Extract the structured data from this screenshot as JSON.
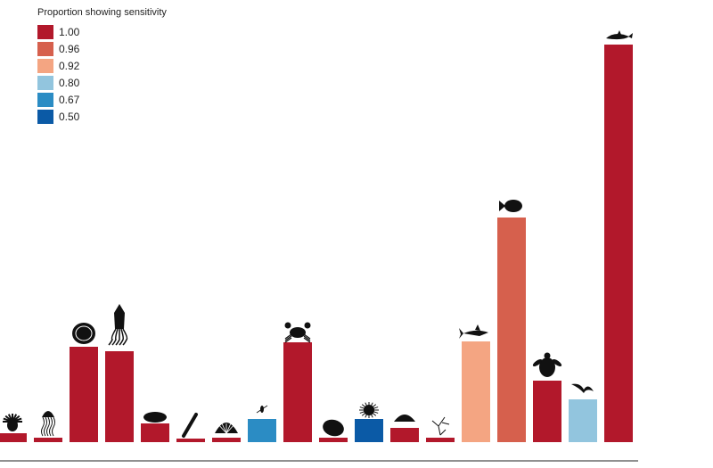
{
  "chart_data": {
    "type": "bar",
    "title": "",
    "xlabel": "",
    "ylabel": "",
    "legend": {
      "title": "Proportion showing sensitivity",
      "position": "top-left",
      "entries": [
        {
          "label": "1.00",
          "color": "#b2182b"
        },
        {
          "label": "0.96",
          "color": "#d6604d"
        },
        {
          "label": "0.92",
          "color": "#f4a582"
        },
        {
          "label": "0.80",
          "color": "#92c5de"
        },
        {
          "label": "0.67",
          "color": "#2b8cc4"
        },
        {
          "label": "0.50",
          "color": "#0b5aa6"
        }
      ]
    },
    "categories": [
      "sea-anemone",
      "jellyfish",
      "clam",
      "squid",
      "snail",
      "tube-worm",
      "scallop",
      "copepod",
      "crab",
      "mussel",
      "sea-urchin",
      "sea-cucumber",
      "bryozoan",
      "shark",
      "fish",
      "sea-turtle",
      "seabird",
      "whale"
    ],
    "values": [
      10,
      5,
      107,
      102,
      21,
      4,
      5,
      26,
      112,
      5,
      26,
      16,
      5,
      113,
      252,
      69,
      48,
      446
    ],
    "sensitivity": [
      "1.00",
      "1.00",
      "1.00",
      "1.00",
      "1.00",
      "1.00",
      "1.00",
      "0.67",
      "1.00",
      "1.00",
      "0.50",
      "1.00",
      "1.00",
      "0.92",
      "0.96",
      "1.00",
      "0.80",
      "1.00"
    ],
    "grid": false
  }
}
